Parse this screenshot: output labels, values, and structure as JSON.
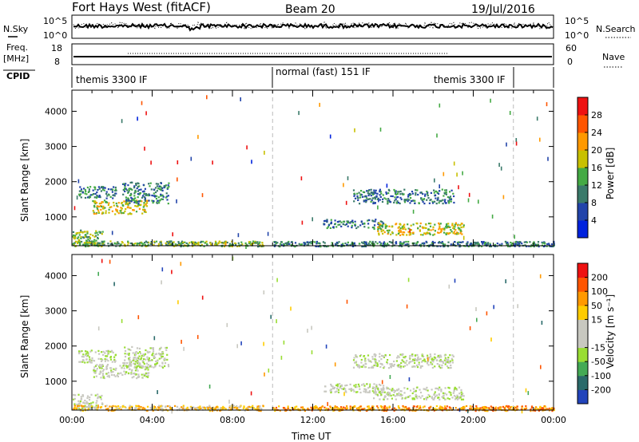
{
  "header": {
    "site": "Fort Hays West (fitACF)",
    "beam": "Beam 20",
    "date": "19/Jul/2016"
  },
  "strips": {
    "nsky_label": "N.Sky",
    "nsky_ticks": [
      "10^5",
      "10^0"
    ],
    "nsearch_label": "N.Search",
    "nsearch_ticks": [
      "10^5",
      "10^0"
    ],
    "freq_label_1": "Freq.",
    "freq_label_2": "[MHz]",
    "freq_ticks": [
      "18",
      "8"
    ],
    "nave_label": "Nave",
    "nave_ticks": [
      "60",
      "0"
    ],
    "cpid_label": "CPID",
    "cpid_segments": [
      "themis 3300 IF",
      "normal (fast) 151 IF",
      "themis 3300 IF"
    ]
  },
  "chart_data": [
    {
      "type": "heatmap",
      "name": "power",
      "ylabel": "Slant Range [km]",
      "ylim": [
        180,
        4600
      ],
      "yticks": [
        "1000",
        "2000",
        "3000",
        "4000"
      ],
      "colorbar_label": "Power [dB]",
      "colorbar_ticks": [
        "4",
        "8",
        "12",
        "16",
        "20",
        "24",
        "28"
      ],
      "colors": [
        "#0022dd",
        "#2244aa",
        "#3a7a6a",
        "#44aa44",
        "#c8c000",
        "#ff9900",
        "#ff5500",
        "#ee1111"
      ],
      "regions": [
        {
          "t": [
            0.3,
            2.2
          ],
          "r": [
            1550,
            1900
          ],
          "level": 2
        },
        {
          "t": [
            1.0,
            3.8
          ],
          "r": [
            1100,
            1500
          ],
          "level": 4
        },
        {
          "t": [
            2.5,
            4.8
          ],
          "r": [
            1400,
            2000
          ],
          "level": 2
        },
        {
          "t": [
            0.0,
            1.5
          ],
          "r": [
            200,
            650
          ],
          "level": 3
        },
        {
          "t": [
            0.0,
            9.5
          ],
          "r": [
            180,
            330
          ],
          "level": 3
        },
        {
          "t": [
            12.5,
            15.5
          ],
          "r": [
            700,
            950
          ],
          "level": 2
        },
        {
          "t": [
            15.0,
            19.5
          ],
          "r": [
            500,
            850
          ],
          "level": 4
        },
        {
          "t": [
            14.0,
            19.0
          ],
          "r": [
            1400,
            1800
          ],
          "level": 2
        },
        {
          "t": [
            10.0,
            24.0
          ],
          "r": [
            180,
            320
          ],
          "level": 2
        }
      ]
    },
    {
      "type": "heatmap",
      "name": "velocity",
      "ylabel": "Slant Range [km]",
      "xlabel": "Time UT",
      "ylim": [
        180,
        4600
      ],
      "yticks": [
        "1000",
        "2000",
        "3000",
        "4000"
      ],
      "xticks": [
        "00:00",
        "04:00",
        "08:00",
        "12:00",
        "16:00",
        "20:00",
        "00:00"
      ],
      "colorbar_label": "Velocity [m s⁻¹]",
      "colorbar_ticks": [
        "200",
        "100",
        "50",
        "15",
        "-15",
        "-50",
        "-100",
        "-200"
      ],
      "colors": [
        "#2244bb",
        "#2a6a6a",
        "#44aa55",
        "#99dd33",
        "#c8c8c0",
        "#c8c8c0",
        "#ffcc00",
        "#ff9900",
        "#ff5500",
        "#ee1111"
      ],
      "regions": [
        {
          "t": [
            0.3,
            2.2
          ],
          "r": [
            1550,
            1900
          ],
          "level": 4
        },
        {
          "t": [
            1.0,
            3.8
          ],
          "r": [
            1100,
            1500
          ],
          "level": 4
        },
        {
          "t": [
            2.5,
            4.8
          ],
          "r": [
            1400,
            2000
          ],
          "level": 4
        },
        {
          "t": [
            0.0,
            1.5
          ],
          "r": [
            200,
            650
          ],
          "level": 4
        },
        {
          "t": [
            0.0,
            9.5
          ],
          "r": [
            180,
            330
          ],
          "level": 6
        },
        {
          "t": [
            12.5,
            15.5
          ],
          "r": [
            700,
            950
          ],
          "level": 4
        },
        {
          "t": [
            15.0,
            19.5
          ],
          "r": [
            500,
            850
          ],
          "level": 4
        },
        {
          "t": [
            14.0,
            19.0
          ],
          "r": [
            1400,
            1800
          ],
          "level": 4
        },
        {
          "t": [
            10.0,
            24.0
          ],
          "r": [
            180,
            320
          ],
          "level": 7
        }
      ]
    }
  ]
}
